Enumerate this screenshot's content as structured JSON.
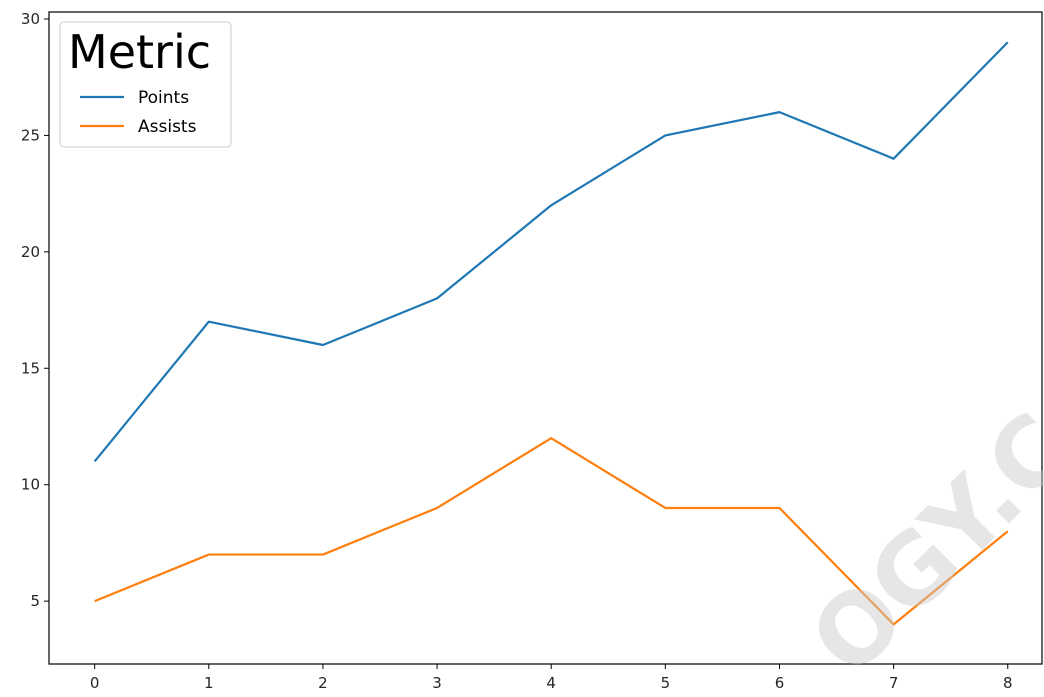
{
  "chart_data": {
    "type": "line",
    "x": [
      0,
      1,
      2,
      3,
      4,
      5,
      6,
      7,
      8
    ],
    "series": [
      {
        "name": "Points",
        "color": "#1f77b4",
        "values": [
          11,
          17,
          16,
          18,
          22,
          25,
          26,
          24,
          29
        ]
      },
      {
        "name": "Assists",
        "color": "#ff7f0e",
        "values": [
          5,
          7,
          7,
          9,
          12,
          9,
          9,
          4,
          8
        ]
      }
    ],
    "xlim": [
      -0.4,
      8.3
    ],
    "ylim": [
      2.3,
      30.3
    ],
    "xticks": [
      "0",
      "1",
      "2",
      "3",
      "4",
      "5",
      "6",
      "7",
      "8"
    ],
    "yticks": [
      "5",
      "10",
      "15",
      "20",
      "25",
      "30"
    ],
    "legend": {
      "title": "Metric",
      "position": "top-left"
    },
    "grid": false
  },
  "watermark": {
    "text": "OGY.CO"
  }
}
